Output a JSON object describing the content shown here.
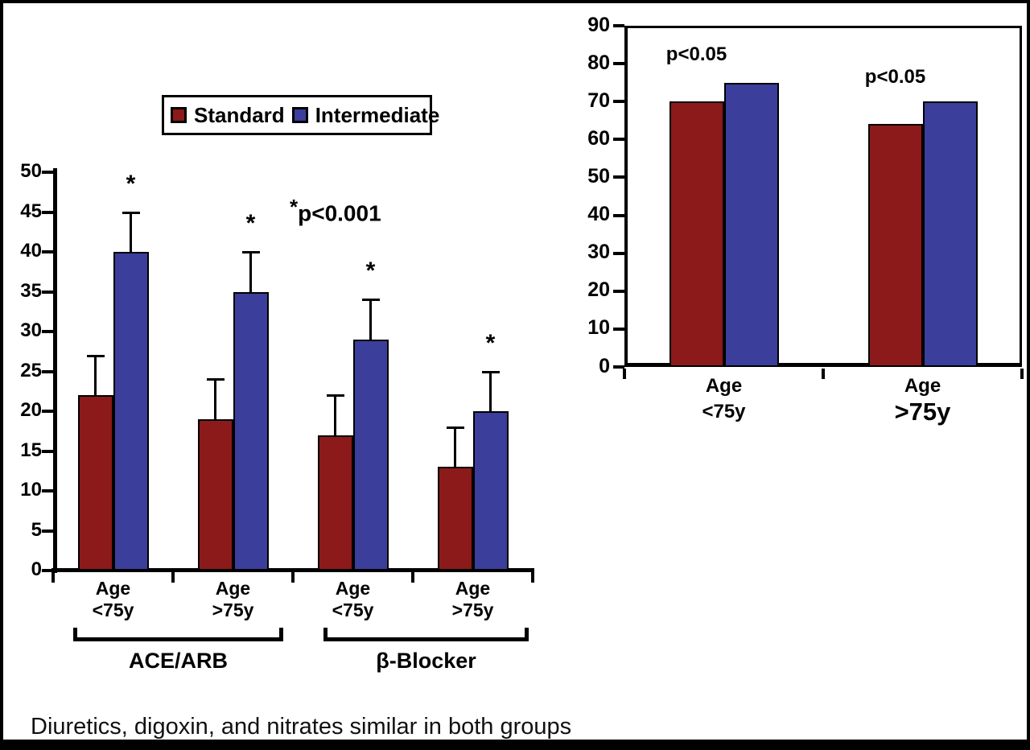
{
  "colors": {
    "standard": "#8C1A1A",
    "intermediate": "#3B3E9A",
    "axis": "#000000"
  },
  "legend": {
    "items": [
      {
        "label": "Standard",
        "color_key": "standard"
      },
      {
        "label": "Intermediate",
        "color_key": "intermediate"
      }
    ]
  },
  "caption": "Diuretics, digoxin, and nitrates similar in both groups",
  "chart_data": [
    {
      "id": "left",
      "type": "bar",
      "title": "",
      "ylabel": "",
      "ylim": [
        0,
        50
      ],
      "ytick_step": 5,
      "grid": false,
      "legend_position": "top",
      "categories": [
        {
          "line1": "Age",
          "line2": "<75y",
          "group": "ACE/ARB"
        },
        {
          "line1": "Age",
          "line2": ">75y",
          "group": "ACE/ARB"
        },
        {
          "line1": "Age",
          "line2": "<75y",
          "group": "β-Blocker"
        },
        {
          "line1": "Age",
          "line2": ">75y",
          "group": "β-Blocker"
        }
      ],
      "series": [
        {
          "name": "Standard",
          "color_key": "standard",
          "values": [
            22,
            19,
            17,
            13
          ],
          "error_top": [
            27,
            24,
            22,
            18
          ],
          "sig": [
            false,
            false,
            false,
            false
          ]
        },
        {
          "name": "Intermediate",
          "color_key": "intermediate",
          "values": [
            40,
            35,
            29,
            20
          ],
          "error_top": [
            45,
            40,
            34,
            25
          ],
          "sig": [
            true,
            true,
            true,
            true
          ]
        }
      ],
      "sig_marker": "*",
      "annotation": {
        "star": "*",
        "text": "p<0.001"
      },
      "group_brackets": [
        {
          "label": "ACE/ARB"
        },
        {
          "label": "β-Blocker"
        }
      ]
    },
    {
      "id": "right",
      "type": "bar",
      "title": "",
      "ylabel": "",
      "ylim": [
        0,
        90
      ],
      "ytick_step": 10,
      "grid": false,
      "categories": [
        {
          "line1": "Age",
          "line2": "<75y",
          "emphasis": false
        },
        {
          "line1": "Age",
          "line2": ">75y",
          "emphasis": true
        }
      ],
      "series": [
        {
          "name": "Standard",
          "color_key": "standard",
          "values": [
            70,
            64
          ]
        },
        {
          "name": "Intermediate",
          "color_key": "intermediate",
          "values": [
            75,
            70
          ]
        }
      ],
      "annotations": [
        {
          "text": "p<0.05"
        },
        {
          "text": "p<0.05"
        }
      ]
    }
  ]
}
